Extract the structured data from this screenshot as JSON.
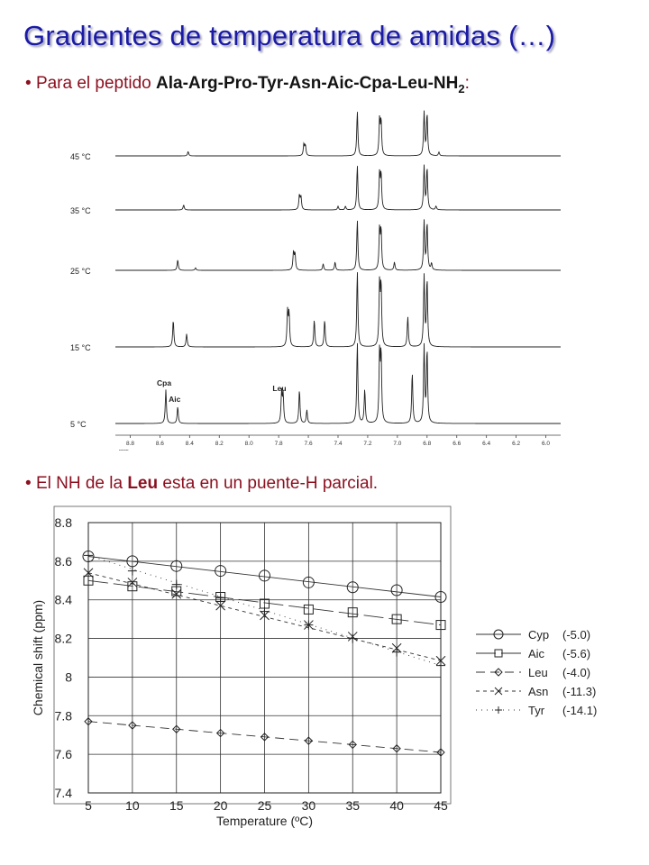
{
  "slide": {
    "title": "Gradientes de temperatura de amidas (…)",
    "bullet1": {
      "prefix": "Para el peptido ",
      "peptide": "Ala-Arg-Pro-Tyr-Asn-Aic-Cpa-Leu-NH",
      "subscript": "2",
      "suffix": ":"
    },
    "bullet2": {
      "prefix": "El NH de la ",
      "highlight": "Leu",
      "suffix": " esta en un puente-H parcial."
    }
  },
  "chart_data": [
    {
      "type": "line",
      "subtype": "nmr-spectra-stack",
      "x_label": "ppm",
      "x_ticks": [
        "8.8",
        "8.6",
        "8.4",
        "8.2",
        "8.0",
        "7.8",
        "7.6",
        "7.4",
        "7.2",
        "7.0",
        "6.8",
        "6.6",
        "6.4",
        "6.2",
        "6.0"
      ],
      "xlim": [
        8.9,
        5.9
      ],
      "x_reversed": true,
      "traces": [
        {
          "name": "45 °C",
          "peaks": [
            {
              "ppm": 8.41,
              "h": 0.06
            },
            {
              "ppm": 7.63,
              "h": 0.16
            },
            {
              "ppm": 7.62,
              "h": 0.14
            },
            {
              "ppm": 7.27,
              "h": 0.62
            },
            {
              "ppm": 7.12,
              "h": 0.5
            },
            {
              "ppm": 7.11,
              "h": 0.47
            },
            {
              "ppm": 6.82,
              "h": 0.6
            },
            {
              "ppm": 6.8,
              "h": 0.58
            },
            {
              "ppm": 6.72,
              "h": 0.05
            }
          ]
        },
        {
          "name": "35 °C",
          "peaks": [
            {
              "ppm": 8.44,
              "h": 0.07
            },
            {
              "ppm": 7.66,
              "h": 0.2
            },
            {
              "ppm": 7.65,
              "h": 0.18
            },
            {
              "ppm": 7.4,
              "h": 0.05
            },
            {
              "ppm": 7.35,
              "h": 0.05
            },
            {
              "ppm": 7.27,
              "h": 0.62
            },
            {
              "ppm": 7.12,
              "h": 0.5
            },
            {
              "ppm": 7.11,
              "h": 0.48
            },
            {
              "ppm": 6.82,
              "h": 0.6
            },
            {
              "ppm": 6.8,
              "h": 0.58
            },
            {
              "ppm": 6.74,
              "h": 0.05
            }
          ]
        },
        {
          "name": "25 °C",
          "peaks": [
            {
              "ppm": 8.48,
              "h": 0.13
            },
            {
              "ppm": 8.36,
              "h": 0.03
            },
            {
              "ppm": 7.7,
              "h": 0.22
            },
            {
              "ppm": 7.69,
              "h": 0.2
            },
            {
              "ppm": 7.5,
              "h": 0.08
            },
            {
              "ppm": 7.42,
              "h": 0.1
            },
            {
              "ppm": 7.27,
              "h": 0.62
            },
            {
              "ppm": 7.12,
              "h": 0.5
            },
            {
              "ppm": 7.11,
              "h": 0.48
            },
            {
              "ppm": 7.02,
              "h": 0.1
            },
            {
              "ppm": 6.82,
              "h": 0.6
            },
            {
              "ppm": 6.8,
              "h": 0.58
            },
            {
              "ppm": 6.77,
              "h": 0.08
            }
          ]
        },
        {
          "name": "15 °C",
          "peaks": [
            {
              "ppm": 8.51,
              "h": 0.25
            },
            {
              "ppm": 8.42,
              "h": 0.12
            },
            {
              "ppm": 7.74,
              "h": 0.32
            },
            {
              "ppm": 7.73,
              "h": 0.3
            },
            {
              "ppm": 7.56,
              "h": 0.25
            },
            {
              "ppm": 7.49,
              "h": 0.25
            },
            {
              "ppm": 7.27,
              "h": 0.7
            },
            {
              "ppm": 7.12,
              "h": 0.58
            },
            {
              "ppm": 7.11,
              "h": 0.55
            },
            {
              "ppm": 6.93,
              "h": 0.28
            },
            {
              "ppm": 6.82,
              "h": 0.65
            },
            {
              "ppm": 6.8,
              "h": 0.62
            }
          ]
        },
        {
          "name": "5 °C",
          "labels": [
            {
              "text": "Cpa",
              "ppm": 8.56
            },
            {
              "text": "Aic",
              "ppm": 8.48
            },
            {
              "text": "Leu",
              "ppm": 7.78
            }
          ],
          "peaks": [
            {
              "ppm": 8.56,
              "h": 0.3
            },
            {
              "ppm": 8.48,
              "h": 0.15
            },
            {
              "ppm": 7.78,
              "h": 0.27
            },
            {
              "ppm": 7.77,
              "h": 0.25
            },
            {
              "ppm": 7.66,
              "h": 0.3
            },
            {
              "ppm": 7.61,
              "h": 0.12
            },
            {
              "ppm": 7.27,
              "h": 0.72
            },
            {
              "ppm": 7.22,
              "h": 0.3
            },
            {
              "ppm": 7.12,
              "h": 0.62
            },
            {
              "ppm": 7.11,
              "h": 0.6
            },
            {
              "ppm": 6.9,
              "h": 0.45
            },
            {
              "ppm": 6.82,
              "h": 0.68
            },
            {
              "ppm": 6.8,
              "h": 0.65
            }
          ]
        }
      ]
    },
    {
      "type": "line",
      "xlabel": "Temperature (ºC)",
      "ylabel": "Chemical shift (ppm)",
      "xlim": [
        5,
        45
      ],
      "ylim": [
        7.4,
        8.8
      ],
      "x_ticks": [
        5,
        10,
        15,
        20,
        25,
        30,
        35,
        40,
        45
      ],
      "y_ticks": [
        7.4,
        7.6,
        7.8,
        8,
        8.2,
        8.4,
        8.6,
        8.8
      ],
      "y_tick_labels": [
        "7.4",
        "7.6",
        "7.8",
        "8",
        "8.2",
        "8.4",
        "8.6",
        "8.8"
      ],
      "grid": true,
      "legend_position": "right",
      "x": [
        5,
        10,
        15,
        20,
        25,
        30,
        35,
        40,
        45
      ],
      "series": [
        {
          "name": "Cyp",
          "coef": "(-5.0)",
          "marker": "circle",
          "dash": "",
          "values": [
            8.625,
            8.6,
            8.575,
            8.55,
            8.525,
            8.49,
            8.465,
            8.45,
            8.415
          ]
        },
        {
          "name": "Aic",
          "coef": "(-5.6)",
          "marker": "square",
          "dash": "22,6",
          "values": [
            8.5,
            8.47,
            8.445,
            8.415,
            8.38,
            8.35,
            8.335,
            8.3,
            8.27
          ]
        },
        {
          "name": "Leu",
          "coef": "(-4.0)",
          "marker": "diamond",
          "dash": "10,6",
          "values": [
            7.77,
            7.75,
            7.73,
            7.71,
            7.69,
            7.67,
            7.65,
            7.63,
            7.61
          ]
        },
        {
          "name": "Asn",
          "coef": "(-11.3)",
          "marker": "x",
          "dash": "4,4",
          "values": [
            8.54,
            8.49,
            8.43,
            8.37,
            8.32,
            8.27,
            8.21,
            8.15,
            8.085
          ]
        },
        {
          "name": "Tyr",
          "coef": "(-14.1)",
          "marker": "plus",
          "dash": "1,5",
          "values": [
            8.63,
            8.55,
            8.48,
            8.41,
            8.34,
            8.27,
            8.2,
            8.13,
            8.06
          ]
        }
      ]
    }
  ]
}
